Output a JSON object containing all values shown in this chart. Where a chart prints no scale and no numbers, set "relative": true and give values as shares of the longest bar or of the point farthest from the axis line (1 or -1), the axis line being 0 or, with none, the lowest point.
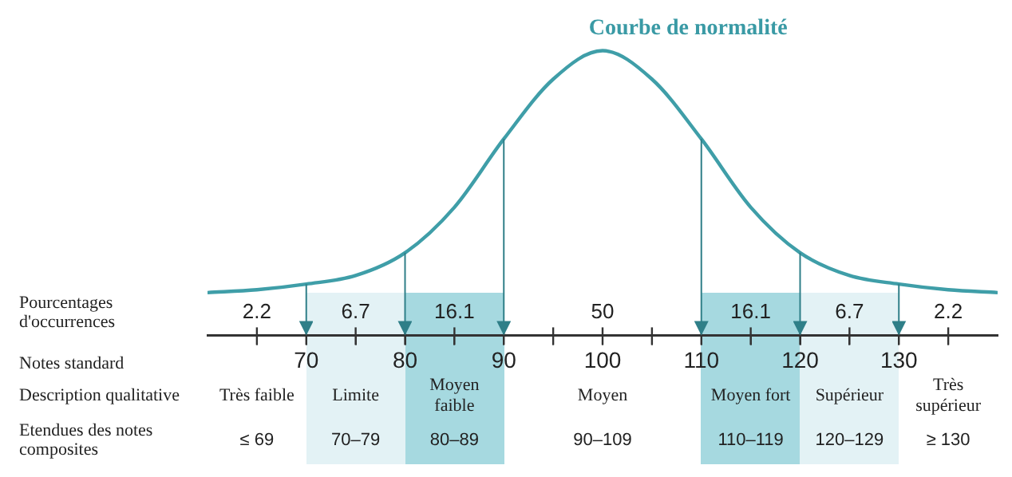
{
  "chart_data": {
    "type": "line",
    "title": "Courbe de normalité",
    "relative": true,
    "x": [
      60,
      65,
      70,
      75,
      80,
      85,
      90,
      95,
      100,
      105,
      110,
      115,
      120,
      125,
      130,
      135,
      140
    ],
    "series": [
      {
        "color": "#3f9ea8",
        "values": [
          0.15,
          0.16,
          0.18,
          0.21,
          0.29,
          0.45,
          0.69,
          0.9,
          1,
          0.9,
          0.69,
          0.45,
          0.29,
          0.21,
          0.18,
          0.16,
          0.15
        ]
      }
    ],
    "xlim": [
      60,
      140
    ],
    "xticks": [
      {
        "value": 65,
        "label": null
      },
      70,
      {
        "value": 75,
        "label": null
      },
      80,
      {
        "value": 85,
        "label": null
      },
      90,
      {
        "value": 95,
        "label": null
      },
      100,
      {
        "value": 105,
        "label": null
      },
      110,
      {
        "value": 115,
        "label": null
      },
      120,
      {
        "value": 125,
        "label": null
      },
      130,
      {
        "value": 135,
        "label": null
      }
    ],
    "ref_lines": [
      {
        "axis": "x",
        "value": 70,
        "color": "#2f7f88"
      },
      {
        "axis": "x",
        "value": 80,
        "color": "#2f7f88"
      },
      {
        "axis": "x",
        "value": 90,
        "color": "#2f7f88"
      },
      {
        "axis": "x",
        "value": 110,
        "color": "#2f7f88"
      },
      {
        "axis": "x",
        "value": 120,
        "color": "#2f7f88"
      },
      {
        "axis": "x",
        "value": 130,
        "color": "#2f7f88"
      }
    ],
    "bands": [
      {
        "axis": "x",
        "from": 70,
        "to": 80,
        "color": "#e3f2f5"
      },
      {
        "axis": "x",
        "from": 80,
        "to": 90,
        "color": "#a6d9e0"
      },
      {
        "axis": "x",
        "from": 110,
        "to": 120,
        "color": "#a6d9e0"
      },
      {
        "axis": "x",
        "from": 120,
        "to": 130,
        "color": "#e3f2f5"
      }
    ],
    "annotations": [
      "Pourcentages d'occurrences",
      "Notes standard",
      "Description qualitative",
      "Etendues des notes composites",
      "2.2",
      "6.7",
      "16.1",
      "50",
      "16.1",
      "6.7",
      "2.2",
      "Très faible",
      "Limite",
      "Moyen faible",
      "Moyen",
      "Moyen fort",
      "Supérieur",
      "Très supérieur",
      "≤ 69",
      "70–79",
      "80–89",
      "90–109",
      "110–119",
      "120–129",
      "≥ 130"
    ],
    "grid": false,
    "legend": false
  }
}
